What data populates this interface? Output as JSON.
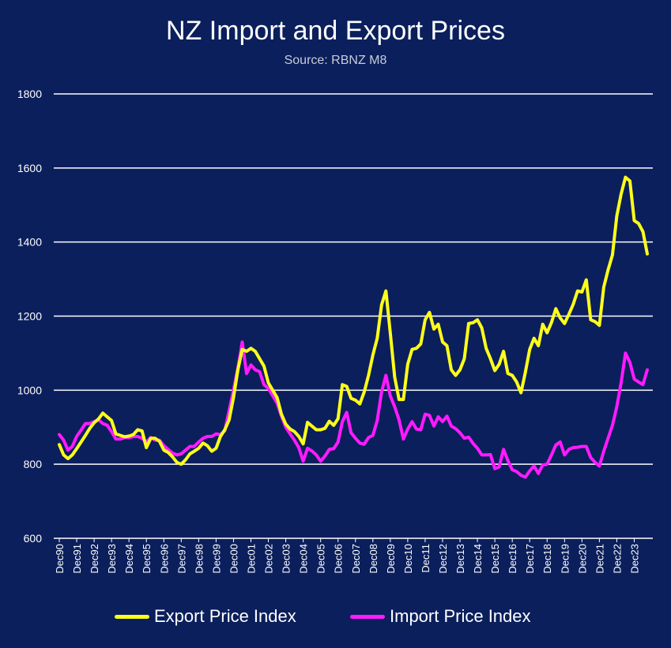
{
  "chart_data": {
    "type": "line",
    "title": "NZ Import and Export Prices",
    "subtitle": "Source: RBNZ M8",
    "xlabel": "",
    "ylabel": "",
    "ylim": [
      600,
      1800
    ],
    "yticks": [
      "600",
      "800",
      "1000",
      "1200",
      "1400",
      "1600",
      "1800"
    ],
    "grid": true,
    "legend_position": "bottom",
    "x_tick_labels": [
      "Dec90",
      "Dec91",
      "Dec92",
      "Dec93",
      "Dec94",
      "Dec95",
      "Dec96",
      "Dec97",
      "Dec98",
      "Dec99",
      "Dec00",
      "Dec01",
      "Dec02",
      "Dec03",
      "Dec04",
      "Dec05",
      "Dec06",
      "Dec07",
      "Dec08",
      "Dec09",
      "Dec10",
      "Dec11",
      "Dec12",
      "Dec13",
      "Dec14",
      "Dec15",
      "Dec16",
      "Dec17",
      "Dec18",
      "Dec19",
      "Dec20",
      "Dec21",
      "Dec22",
      "Dec23"
    ],
    "x_start": "Dec 1990",
    "x_end": "Dec 2023",
    "frequency": "quarterly",
    "series": [
      {
        "name": "Export Price Index",
        "color": "#ffff1a",
        "values": [
          853,
          825,
          815,
          825,
          842,
          860,
          878,
          897,
          912,
          922,
          938,
          928,
          918,
          882,
          878,
          874,
          876,
          880,
          893,
          890,
          845,
          870,
          870,
          862,
          838,
          832,
          820,
          805,
          800,
          812,
          828,
          835,
          843,
          857,
          850,
          835,
          843,
          875,
          893,
          920,
          980,
          1055,
          1110,
          1105,
          1113,
          1105,
          1085,
          1065,
          1020,
          1000,
          980,
          935,
          908,
          895,
          888,
          875,
          855,
          913,
          903,
          893,
          893,
          897,
          916,
          905,
          923,
          1015,
          1010,
          978,
          973,
          963,
          995,
          1040,
          1095,
          1140,
          1230,
          1268,
          1155,
          1035,
          975,
          975,
          1070,
          1110,
          1113,
          1125,
          1190,
          1210,
          1165,
          1178,
          1130,
          1120,
          1055,
          1040,
          1055,
          1085,
          1180,
          1182,
          1190,
          1168,
          1113,
          1085,
          1053,
          1070,
          1105,
          1045,
          1040,
          1022,
          993,
          1048,
          1110,
          1140,
          1120,
          1178,
          1155,
          1183,
          1220,
          1195,
          1180,
          1205,
          1232,
          1268,
          1265,
          1298,
          1190,
          1185,
          1175,
          1278,
          1325,
          1365,
          1470,
          1530,
          1575,
          1565,
          1458,
          1450,
          1428,
          1368
        ]
      },
      {
        "name": "Import Price Index",
        "color": "#ff1aff",
        "values": [
          880,
          865,
          838,
          848,
          875,
          892,
          910,
          910,
          915,
          920,
          910,
          905,
          888,
          868,
          868,
          872,
          872,
          875,
          875,
          870,
          860,
          872,
          865,
          865,
          850,
          840,
          830,
          825,
          828,
          838,
          848,
          848,
          860,
          870,
          875,
          875,
          882,
          880,
          890,
          945,
          1000,
          1060,
          1130,
          1045,
          1068,
          1055,
          1050,
          1015,
          1005,
          985,
          965,
          930,
          900,
          882,
          865,
          845,
          808,
          843,
          836,
          825,
          808,
          822,
          840,
          842,
          860,
          915,
          940,
          885,
          870,
          857,
          854,
          872,
          878,
          918,
          995,
          1040,
          985,
          955,
          920,
          868,
          895,
          915,
          895,
          893,
          935,
          932,
          903,
          928,
          915,
          930,
          903,
          896,
          885,
          870,
          873,
          856,
          843,
          825,
          825,
          826,
          788,
          793,
          840,
          810,
          785,
          780,
          770,
          765,
          782,
          795,
          775,
          798,
          800,
          825,
          852,
          860,
          825,
          840,
          845,
          846,
          848,
          848,
          818,
          805,
          795,
          835,
          870,
          905,
          955,
          1020,
          1100,
          1075,
          1030,
          1022,
          1015,
          1055
        ]
      }
    ]
  }
}
